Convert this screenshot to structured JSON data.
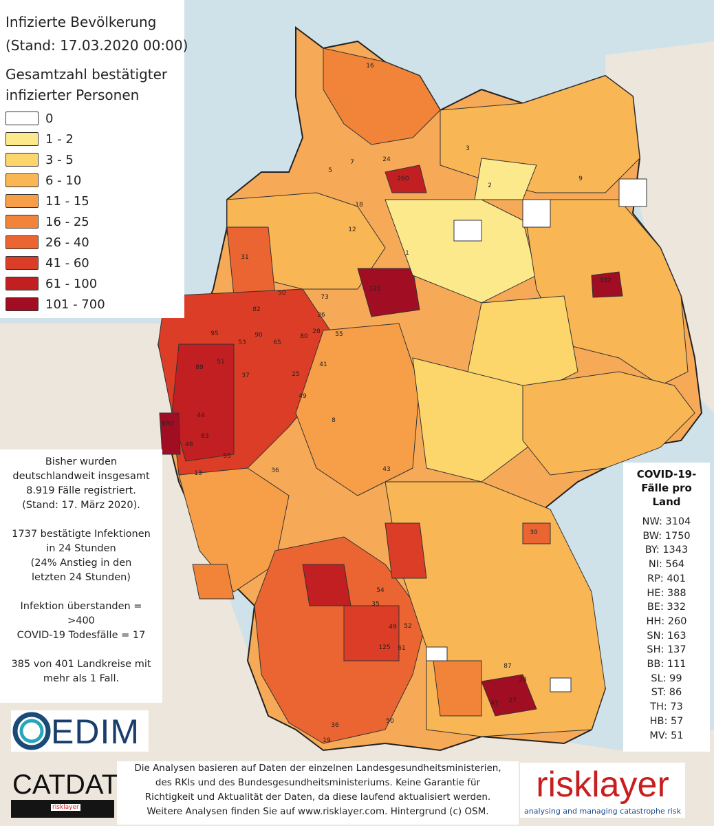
{
  "map": {
    "title_line1": "Infizierte Bevölkerung",
    "title_line2": "(Stand: 17.03.2020 00:00)",
    "legend_title_line1": "Gesamtzahl bestätigter",
    "legend_title_line2": " infizierter Personen",
    "legend_classes": [
      {
        "label": "0",
        "color": "#ffffff"
      },
      {
        "label": "1 - 2",
        "color": "#fce98c"
      },
      {
        "label": "3 - 5",
        "color": "#fcd66a"
      },
      {
        "label": "6 - 10",
        "color": "#f9b655"
      },
      {
        "label": "11 - 15",
        "color": "#f79f48"
      },
      {
        "label": "16 - 25",
        "color": "#f2843a"
      },
      {
        "label": "26 - 40",
        "color": "#ea6531"
      },
      {
        "label": "41 - 60",
        "color": "#dc3d26"
      },
      {
        "label": "61 - 100",
        "color": "#c21f22"
      },
      {
        "label": "101 - 700",
        "color": "#a10d23"
      }
    ],
    "district_labels": [
      "16",
      "3",
      "7",
      "9",
      "2",
      "24",
      "260",
      "5",
      "12",
      "18",
      "31",
      "1",
      "121",
      "332",
      "73",
      "82",
      "50",
      "26",
      "28",
      "55",
      "95",
      "53",
      "90",
      "65",
      "80",
      "41",
      "89",
      "51",
      "37",
      "25",
      "49",
      "44",
      "690",
      "63",
      "46",
      "55",
      "13",
      "8",
      "36",
      "43",
      "54",
      "35",
      "49",
      "52",
      "125",
      "61",
      "87",
      "28",
      "30",
      "47",
      "27",
      "50",
      "36",
      "19"
    ]
  },
  "info": {
    "lines": [
      "Bisher wurden",
      "deutschlandweit insgesamt",
      "8.919 Fälle registriert.",
      "(Stand: 17. März 2020).",
      "",
      "1737 bestätigte Infektionen",
      "in 24 Stunden",
      "(24% Anstieg in den",
      "letzten 24 Stunden)",
      "",
      "Infektion überstanden =",
      ">400",
      "COVID-19 Todesfälle = 17",
      "",
      "385 von 401 Landkreise mit",
      "mehr als 1 Fall."
    ]
  },
  "states": {
    "title_line1": "COVID-19-",
    "title_line2": "Fälle pro",
    "title_line3": "Land",
    "rows": [
      "NW: 3104",
      "BW: 1750",
      "BY: 1343",
      "NI: 564",
      "RP: 401",
      "HE: 388",
      "BE: 332",
      "HH: 260",
      "SN: 163",
      "SH: 137",
      "BB: 111",
      "SL: 99",
      "ST: 86",
      "TH: 73",
      "HB: 57",
      "MV: 51"
    ]
  },
  "logos": {
    "edim": "EDIM",
    "catdat": "CATDAT",
    "catdat_sub": "risklayer",
    "risklayer": "risklayer",
    "risklayer_tagline": "analysing and managing catastrophe risk"
  },
  "footer": {
    "lines": [
      "Die Analysen basieren auf Daten der einzelnen Landesgesundheitsministerien,",
      "des RKIs und des Bundesgesundheitsministeriums. Keine Garantie für",
      "Richtigkeit und Aktualität der Daten, da diese laufend aktualisiert werden.",
      "Weitere Analysen finden Sie auf www.risklayer.com. Hintergrund (c) OSM."
    ]
  }
}
